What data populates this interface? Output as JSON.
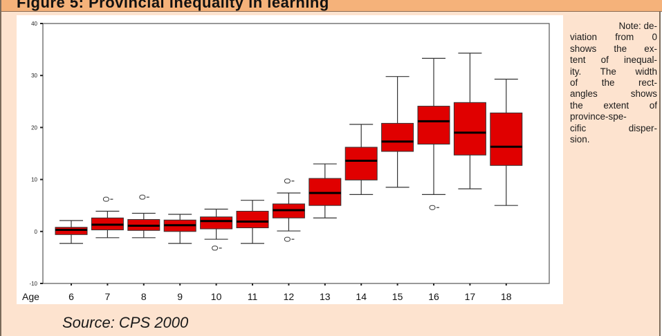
{
  "title": "Figure 5: Provincial inequality in learning",
  "note": {
    "lines": [
      "Note: de-",
      "viation from 0",
      "shows the ex-",
      "tent of inequal-",
      "ity. The width",
      "of the rect-",
      "angles shows",
      "the extent of",
      "province-spe-",
      "cific disper-",
      "sion."
    ]
  },
  "source": "Source: CPS 2000",
  "colors": {
    "box_fill": "#e00000",
    "panel_bg": "#fde3cf",
    "title_band": "#f5b27a"
  },
  "chart_data": {
    "type": "boxplot",
    "xlabel": "Age",
    "ylabel": "",
    "ylim": [
      -10,
      40
    ],
    "yticks": [
      -10,
      0,
      10,
      20,
      30,
      40
    ],
    "categories": [
      "6",
      "7",
      "8",
      "9",
      "10",
      "11",
      "12",
      "13",
      "14",
      "15",
      "16",
      "17",
      "18"
    ],
    "boxes": [
      {
        "min": -2.3,
        "q1": -0.6,
        "median": 0.3,
        "q3": 0.8,
        "max": 2.1
      },
      {
        "min": -1.2,
        "q1": 0.3,
        "median": 1.3,
        "q3": 2.6,
        "max": 3.9
      },
      {
        "min": -1.2,
        "q1": 0.2,
        "median": 1.1,
        "q3": 2.3,
        "max": 3.5
      },
      {
        "min": -2.3,
        "q1": 0.0,
        "median": 1.2,
        "q3": 2.2,
        "max": 3.3
      },
      {
        "min": -1.5,
        "q1": 0.5,
        "median": 2.0,
        "q3": 2.8,
        "max": 4.3
      },
      {
        "min": -2.3,
        "q1": 0.7,
        "median": 1.9,
        "q3": 3.9,
        "max": 6.0
      },
      {
        "min": 0.1,
        "q1": 2.6,
        "median": 4.1,
        "q3": 5.3,
        "max": 7.4
      },
      {
        "min": 2.6,
        "q1": 5.0,
        "median": 7.4,
        "q3": 10.2,
        "max": 13.0
      },
      {
        "min": 7.1,
        "q1": 9.9,
        "median": 13.6,
        "q3": 16.2,
        "max": 20.6
      },
      {
        "min": 8.5,
        "q1": 15.4,
        "median": 17.3,
        "q3": 20.8,
        "max": 29.8
      },
      {
        "min": 7.1,
        "q1": 16.8,
        "median": 21.2,
        "q3": 24.1,
        "max": 33.3
      },
      {
        "min": 8.2,
        "q1": 14.7,
        "median": 19.0,
        "q3": 24.8,
        "max": 34.3
      },
      {
        "min": 5.0,
        "q1": 12.7,
        "median": 16.3,
        "q3": 22.8,
        "max": 29.3
      }
    ],
    "outliers": [
      {
        "category": "7",
        "y": 6.2
      },
      {
        "category": "8",
        "y": 6.6
      },
      {
        "category": "10",
        "y": -3.2
      },
      {
        "category": "12",
        "y": 9.7
      },
      {
        "category": "12",
        "y": -1.5
      },
      {
        "category": "16",
        "y": 4.6
      }
    ],
    "grid": false,
    "legend": "none"
  }
}
